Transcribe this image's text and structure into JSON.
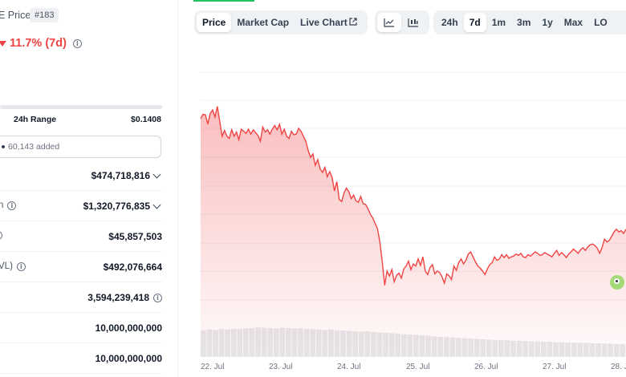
{
  "header": {
    "price_title": "E Price",
    "rank": "#183",
    "change": "11.7% (7d)"
  },
  "range": {
    "label": "24h Range",
    "high": "$0.1408"
  },
  "watchlist": {
    "added_text": "60,143 added"
  },
  "stats": [
    {
      "label": "",
      "value": "$474,718,816",
      "has_chevron": true
    },
    {
      "label": "n",
      "value": "$1,320,776,835",
      "has_chevron": true
    },
    {
      "label": "",
      "value": "$45,857,503"
    },
    {
      "label": "VL)",
      "value": "$492,076,664"
    },
    {
      "label": "",
      "value": "3,594,239,418"
    },
    {
      "label": "",
      "value": "10,000,000,000"
    },
    {
      "label": "",
      "value": "10,000,000,000"
    }
  ],
  "chart_controls": {
    "type_tabs": [
      "Price",
      "Market Cap",
      "Live Chart"
    ],
    "active_type": "Price",
    "view_icons": [
      "line-chart-icon",
      "candlestick-icon"
    ],
    "ranges": [
      "24h",
      "7d",
      "1m",
      "3m",
      "1y",
      "Max",
      "LO"
    ],
    "active_range": "7d"
  },
  "colors": {
    "down": "#ef4444",
    "accent_green": "#22c55e",
    "volume": "#e5e7eb"
  },
  "chart_data": {
    "type": "area",
    "x_ticks": [
      "22. Jul",
      "23. Jul",
      "24. Jul",
      "25. Jul",
      "26. Jul",
      "27. Jul",
      "28. J"
    ],
    "price_series": [
      0.6,
      0.66,
      0.65,
      0.52,
      0.67,
      0.72,
      0.62,
      0.77,
      0.56,
      0.35,
      0.43,
      0.35,
      0.32,
      0.44,
      0.35,
      0.41,
      0.3,
      0.45,
      0.42,
      0.39,
      0.45,
      0.38,
      0.44,
      0.4,
      0.36,
      0.28,
      0.48,
      0.41,
      0.44,
      0.38,
      0.45,
      0.5,
      0.44,
      0.52,
      0.38,
      0.45,
      0.35,
      0.32,
      0.42,
      0.37,
      0.38,
      0.46,
      0.42,
      0.35,
      0.28,
      0.15,
      0.05,
      0.1,
      -0.06,
      0.02,
      -0.11,
      -0.16,
      -0.09,
      -0.22,
      -0.15,
      -0.23,
      -0.42,
      -0.29,
      -0.54,
      -0.57,
      -0.45,
      -0.38,
      -0.43,
      -0.53,
      -0.48,
      -0.56,
      -0.58,
      -0.5,
      -0.6,
      -0.61,
      -0.67,
      -0.75,
      -0.8,
      -0.88,
      -0.95,
      -1.14,
      -1.42,
      -1.75,
      -1.55,
      -1.62,
      -1.53,
      -1.7,
      -1.61,
      -1.58,
      -1.65,
      -1.52,
      -1.48,
      -1.41,
      -1.53,
      -1.45,
      -1.48,
      -1.38,
      -1.47,
      -1.35,
      -1.55,
      -1.6,
      -1.5,
      -1.46,
      -1.59,
      -1.55,
      -1.57,
      -1.63,
      -1.72,
      -1.59,
      -1.62,
      -1.67,
      -1.48,
      -1.54,
      -1.43,
      -1.38,
      -1.45,
      -1.4,
      -1.31,
      -1.28,
      -1.35,
      -1.42,
      -1.48,
      -1.51,
      -1.55,
      -1.6,
      -1.52,
      -1.46,
      -1.43,
      -1.35,
      -1.4,
      -1.38,
      -1.32,
      -1.36,
      -1.32,
      -1.37,
      -1.35,
      -1.34,
      -1.31,
      -1.33,
      -1.3,
      -1.35,
      -1.36,
      -1.32,
      -1.34,
      -1.31,
      -1.28,
      -1.3,
      -1.33,
      -1.32,
      -1.29,
      -1.31,
      -1.33,
      -1.35,
      -1.3,
      -1.26,
      -1.33,
      -1.29,
      -1.32,
      -1.36,
      -1.31,
      -1.28,
      -1.24,
      -1.27,
      -1.3,
      -1.25,
      -1.22,
      -1.26,
      -1.21,
      -1.18,
      -1.17,
      -1.19,
      -1.23,
      -1.3,
      -1.22,
      -1.1,
      -1.14,
      -1.12,
      -1.06,
      -1.0,
      -0.96,
      -1.0,
      -0.98,
      -1.02,
      -0.96
    ],
    "volume_series": [
      0.74,
      0.76,
      0.75,
      0.77,
      0.76,
      0.78,
      0.77,
      0.79,
      0.8,
      0.82,
      0.81,
      0.8,
      0.79,
      0.81,
      0.8,
      0.79,
      0.8,
      0.78,
      0.77,
      0.76,
      0.75,
      0.76,
      0.74,
      0.73,
      0.72,
      0.71,
      0.7,
      0.71,
      0.69,
      0.68,
      0.67,
      0.66,
      0.65,
      0.63,
      0.62,
      0.61,
      0.6,
      0.59,
      0.57,
      0.56,
      0.55,
      0.54,
      0.53,
      0.52,
      0.51,
      0.5,
      0.49,
      0.48,
      0.47,
      0.47,
      0.46,
      0.45,
      0.45,
      0.44,
      0.43,
      0.43,
      0.42,
      0.42,
      0.41,
      0.41,
      0.4,
      0.4,
      0.39,
      0.39,
      0.38,
      0.38,
      0.37,
      0.37,
      0.36,
      0.36
    ]
  }
}
